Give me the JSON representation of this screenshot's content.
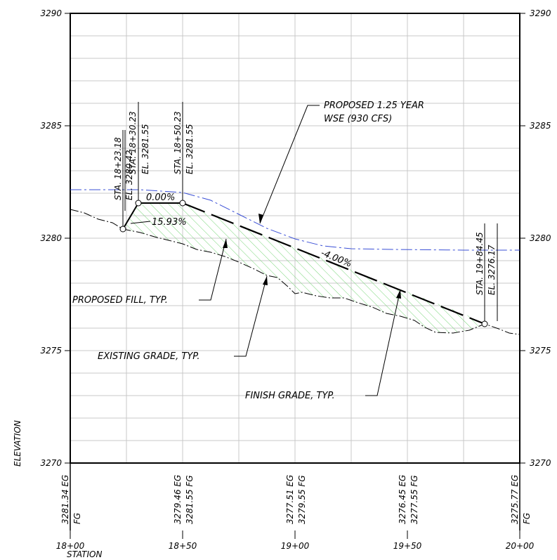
{
  "axis": {
    "left_ticks": [
      "3290",
      "3285",
      "3280",
      "3275",
      "3270"
    ],
    "right_ticks": [
      "3290",
      "3285",
      "3280",
      "3275",
      "3270"
    ],
    "station_ticks": [
      "18+00",
      "18+50",
      "19+00",
      "19+50",
      "20+00"
    ],
    "y_title": "ELEVATION",
    "x_title": "STATION"
  },
  "callouts": {
    "wse": [
      "PROPOSED 1.25 YEAR",
      "WSE (930 CFS)"
    ],
    "fill": "PROPOSED FILL, TYP.",
    "existing": "EXISTING GRADE, TYP.",
    "finish": "FINISH GRADE, TYP."
  },
  "grades": {
    "flat": "0.00%",
    "steep": "15.93%",
    "slope": "-4.00%"
  },
  "stations": [
    {
      "sta": "STA. 18+23.18",
      "el": "EL. 3280.42"
    },
    {
      "sta": "STA. 18+30.23",
      "el": "EL. 3281.55"
    },
    {
      "sta": "STA. 18+50.23",
      "el": "EL. 3281.55"
    },
    {
      "sta": "STA. 19+84.45",
      "el": "EL. 3276.17"
    }
  ],
  "profile_table": {
    "columns": [
      {
        "eg": "3281.34 EG",
        "fg": "FG"
      },
      {
        "eg": "3279.46 EG",
        "fg": "3281.55 FG"
      },
      {
        "eg": "3277.51 EG",
        "fg": "3279.55 FG"
      },
      {
        "eg": "3276.45 EG",
        "fg": "3277.55 FG"
      },
      {
        "eg": "3275.77 EG",
        "fg": "FG"
      }
    ]
  },
  "colors": {
    "wse_line": "#3a4fd6",
    "fill_hatch": "#7ad67a",
    "grid": "#c8c8c8"
  }
}
